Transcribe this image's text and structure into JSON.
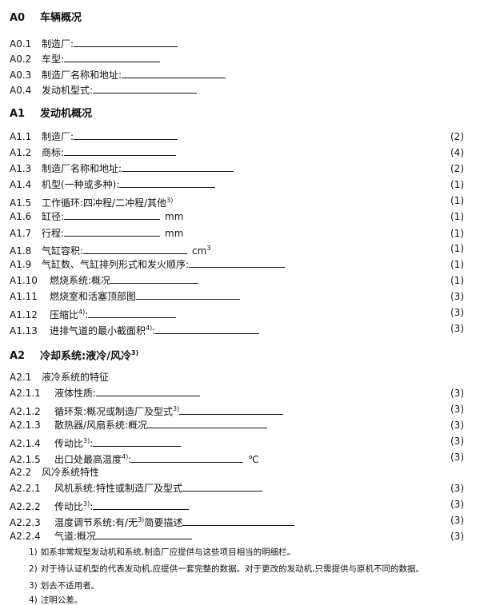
{
  "sections": [
    {
      "heading": {
        "number": "A0",
        "title": "车辆概况"
      },
      "items": [
        {
          "number": "A0.1",
          "label": "制造厂:"
        },
        {
          "number": "A0.2",
          "label": "车型:"
        },
        {
          "number": "A0.3",
          "label": "制造厂名称和地址:"
        },
        {
          "number": "A0.4",
          "label": "发动机型式:"
        }
      ]
    },
    {
      "heading": {
        "number": "A1",
        "title": "发动机概况"
      },
      "items": [
        {
          "number": "A1.1",
          "label": "制造厂:",
          "note": "(2)"
        },
        {
          "number": "A1.2",
          "label": "商标:",
          "note": "(4)"
        },
        {
          "number": "A1.3",
          "label": "制造厂名称和地址:",
          "note": "(2)"
        },
        {
          "number": "A1.4",
          "label": "机型(一种或多种):",
          "note": "(1)"
        },
        {
          "number": "A1.5",
          "label": "工作循环:四冲程/二冲程/其他",
          "sup": "3)",
          "note": "(1)"
        },
        {
          "number": "A1.6",
          "label": "缸径:",
          "unit": "mm",
          "note": "(1)"
        },
        {
          "number": "A1.7",
          "label": "行程:",
          "unit": "mm",
          "note": "(1)"
        },
        {
          "number": "A1.8",
          "label": "气缸容积:",
          "unit": "cm",
          "unit_sup": "3",
          "note": "(1)"
        },
        {
          "number": "A1.9",
          "label": "气缸数、气缸排列形式和发火顺序:",
          "note": "(1)"
        },
        {
          "number": "A1.10",
          "label": "燃烧系统:概况",
          "note": "(1)"
        },
        {
          "number": "A1.11",
          "label": "燃烧室和活塞顶部图",
          "note": "(3)"
        },
        {
          "number": "A1.12",
          "label": "压缩比",
          "sup": "4)",
          "after": ":",
          "note": "(3)"
        },
        {
          "number": "A1.13",
          "label": "进排气道的最小截面积",
          "sup": "4)",
          "after": ":",
          "note": "(3)"
        }
      ]
    },
    {
      "heading": {
        "number": "A2",
        "title": "冷却系统:液冷/风冷",
        "sup": "3)"
      },
      "items": [
        {
          "number": "A2.1",
          "label": "液冷系统的特征"
        },
        {
          "number": "A2.1.1",
          "label": "液体性质:",
          "note": "(3)"
        },
        {
          "number": "A2.1.2",
          "label": "循环泵:概况或制造厂及型式",
          "sup": "3)",
          "note": "(3)"
        },
        {
          "number": "A2.1.3",
          "label": "散热器/风扇系统:概况",
          "note": "(3)"
        },
        {
          "number": "A2.1.4",
          "label": "传动比",
          "sup": "3)",
          "after": ":",
          "note": "(3)"
        },
        {
          "number": "A2.1.5",
          "label": "出口处最高温度",
          "sup": "4)",
          "after": ":",
          "unit": "℃",
          "note": "(3)"
        },
        {
          "number": "A2.2",
          "label": "风冷系统特性"
        },
        {
          "number": "A2.2.1",
          "label": "风机系统:特性或制造厂及型式",
          "note": "(3)"
        },
        {
          "number": "A2.2.2",
          "label": "传动比",
          "sup": "3)",
          "after": ":",
          "note": "(3)"
        },
        {
          "number": "A2.2.3",
          "label": "温度调节系统:有/无",
          "sup": "3)",
          "after": "简要描述",
          "note": "(3)"
        },
        {
          "number": "A2.2.4",
          "label": "气道:概况",
          "note": "(3)"
        }
      ]
    }
  ],
  "footnotes": [
    {
      "number": "1)",
      "text": "如系非常规型发动机和系统,制造厂应提供与这些项目相当的明细栏。"
    },
    {
      "number": "2)",
      "text": "对于待认证机型的代表发动机,应提供一套完整的数据。对于更改的发动机,只需提供与原机不同的数据。"
    },
    {
      "number": "3)",
      "text": "划去不适用者。"
    },
    {
      "number": "4)",
      "text": "注明公差。"
    }
  ]
}
